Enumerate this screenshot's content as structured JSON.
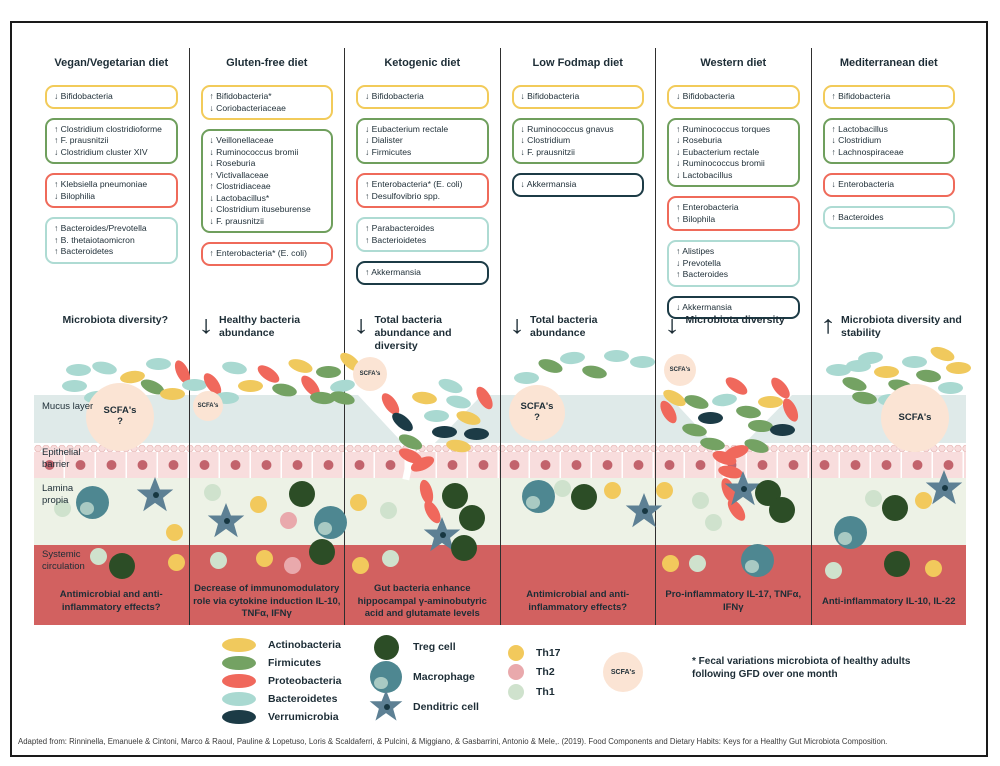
{
  "columns": [
    {
      "title": "Vegan/Vegetarian diet",
      "boxes": [
        {
          "color": "yellow",
          "items": [
            "↓ Bifidobacteria"
          ]
        },
        {
          "color": "green",
          "items": [
            "↑ Clostridium clostridioforme",
            "↑ F. prausnitzii",
            "↓ Clostridium cluster XIV"
          ]
        },
        {
          "color": "red",
          "items": [
            "↑ Klebsiella pneumoniae",
            "↓ Bilophilia"
          ]
        },
        {
          "color": "teal",
          "items": [
            "↑ Bacteroides/Prevotella",
            "↑ B. thetaiotaomicron",
            "↑ Bacteroidetes"
          ]
        }
      ],
      "diversity": {
        "arrow": "",
        "text": "Microbiota diversity?"
      },
      "scfa": {
        "text": "SCFA's",
        "question": true
      },
      "effect": "Antimicrobial and anti-inflammatory effects?"
    },
    {
      "title": "Gluten-free diet",
      "boxes": [
        {
          "color": "yellow",
          "items": [
            "↑ Bifidobacteria*",
            "↓ Coriobacteriaceae"
          ]
        },
        {
          "color": "green",
          "items": [
            "↓ Veillonellaceae",
            "↓ Ruminococcus bromii",
            "↓ Roseburia",
            "↑ Victivallaceae",
            "↑ Clostridiaceae",
            "↓ Lactobacillus*",
            "↓ Clostridium ituseburense",
            "↓ F. prausnitzii"
          ]
        },
        {
          "color": "red",
          "items": [
            "↑ Enterobacteria* (E. coli)"
          ]
        }
      ],
      "diversity": {
        "arrow": "↓",
        "text": "Healthy bacteria abundance"
      },
      "scfa": {
        "text": "SCFA's",
        "question": false
      },
      "effect": "Decrease of immunomodulatory role via cytokine induction IL-10, TNFα, IFNγ"
    },
    {
      "title": "Ketogenic diet",
      "boxes": [
        {
          "color": "yellow",
          "items": [
            "↓ Bifidobacteria"
          ]
        },
        {
          "color": "green",
          "items": [
            "↓ Eubacterium rectale",
            "↓ Dialister",
            "↓ Firmicutes"
          ]
        },
        {
          "color": "red",
          "items": [
            "↑ Enterobacteria* (E. coli)",
            "↑ Desulfovibrio spp."
          ]
        },
        {
          "color": "teal",
          "items": [
            "↑ Parabacteroides",
            "↑ Bacterioidetes"
          ]
        },
        {
          "color": "navy",
          "items": [
            "↑ Akkermansia"
          ]
        }
      ],
      "diversity": {
        "arrow": "↓",
        "text": "Total bacteria abundance and diversity"
      },
      "scfa": {
        "text": "SCFA's",
        "question": false
      },
      "effect": "Gut bacteria enhance hippocampal γ-aminobutyric acid and glutamate levels"
    },
    {
      "title": "Low Fodmap diet",
      "boxes": [
        {
          "color": "yellow",
          "items": [
            "↓ Bifidobacteria"
          ]
        },
        {
          "color": "green",
          "items": [
            "↓ Ruminococcus gnavus",
            "↓ Clostridium",
            "↓ F. prausnitzii"
          ]
        },
        {
          "color": "navy",
          "items": [
            "↓ Akkermansia"
          ]
        }
      ],
      "diversity": {
        "arrow": "↓",
        "text": "Total bacteria abundance"
      },
      "scfa": {
        "text": "SCFA's",
        "question": true
      },
      "effect": "Antimicrobial and anti-inflammatory effects?"
    },
    {
      "title": "Western diet",
      "boxes": [
        {
          "color": "yellow",
          "items": [
            "↓ Bifidobacteria"
          ]
        },
        {
          "color": "green",
          "items": [
            "↑ Ruminococcus torques",
            "↓ Roseburia",
            "↓ Eubacterium rectale",
            "↓ Ruminococcus bromii",
            "↓ Lactobacillus"
          ]
        },
        {
          "color": "red",
          "items": [
            "↑ Enterobacteria",
            "↑ Bilophila"
          ]
        },
        {
          "color": "teal",
          "items": [
            "↑ Alistipes",
            "↓ Prevotella",
            "↑ Bacteroides"
          ]
        },
        {
          "color": "navy",
          "items": [
            "↓ Akkermansia"
          ]
        }
      ],
      "diversity": {
        "arrow": "↓",
        "text": "Microbiota diversity"
      },
      "scfa": {
        "text": "SCFA's",
        "question": false
      },
      "effect": "Pro-inflammatory IL-17, TNFα, IFNγ"
    },
    {
      "title": "Mediterranean diet",
      "boxes": [
        {
          "color": "yellow",
          "items": [
            "↑ Bifidobacteria"
          ]
        },
        {
          "color": "green",
          "items": [
            "↑ Lactobacillus",
            "↓ Clostridium",
            "↑ Lachnospiraceae"
          ]
        },
        {
          "color": "red",
          "items": [
            "↓ Enterobacteria"
          ]
        },
        {
          "color": "teal",
          "items": [
            "↑ Bacteroides"
          ]
        }
      ],
      "diversity": {
        "arrow": "↑",
        "text": "Microbiota diversity and stability"
      },
      "scfa": {
        "text": "SCFA's",
        "question": false
      },
      "effect": "Anti-inflammatory IL-10, IL-22"
    }
  ],
  "layers": {
    "mucus": "Mucus layer",
    "epithelial": "Epithelial barrier",
    "lamina": "Lamina propia",
    "systemic": "Systemic circulation"
  },
  "legend": {
    "bacteria": [
      {
        "key": "a",
        "label": "Actinobacteria"
      },
      {
        "key": "f",
        "label": "Firmicutes"
      },
      {
        "key": "p",
        "label": "Proteobacteria"
      },
      {
        "key": "b",
        "label": "Bacteroidetes"
      },
      {
        "key": "v",
        "label": "Verrumicrobia"
      }
    ],
    "cells": [
      {
        "key": "treg",
        "label": "Treg cell"
      },
      {
        "key": "mac",
        "label": "Macrophage"
      },
      {
        "key": "den",
        "label": "Denditric cell"
      }
    ],
    "th": [
      {
        "key": "th17",
        "label": "Th17"
      },
      {
        "key": "th2",
        "label": "Th2"
      },
      {
        "key": "th1",
        "label": "Th1"
      }
    ],
    "scfa_label": "SCFA's",
    "footnote": "* Fecal variations microbiota of healthy adults following GFD over one month"
  },
  "citation": "Adapted from: Rinninella, Emanuele & Cintoni, Marco & Raoul, Pauline & Lopetuso, Loris & Scaldaferri, & Pulcini, & Miggiano, & Gasbarrini, Antonio & Mele,. (2019). Food Components and Dietary Habits: Keys for a Healthy Gut Microbiota Composition.",
  "colors": {
    "ink": "#1d2d36",
    "yellow": "#f2cb5a",
    "green": "#6f9f5d",
    "red": "#ef6a5a",
    "teal": "#aedbd3",
    "navy": "#1c3b46",
    "actino": "#f0c95d",
    "firmicutes": "#74a263",
    "proteo": "#f0685c",
    "bacteroidetes": "#a9d9d1",
    "verrumicrobia": "#1c3b46",
    "treg": "#2c4d26",
    "mac": "#4e8791",
    "den": "#5d8094",
    "th17": "#f2c95c",
    "th2": "#e9a9ac",
    "th1": "#cfe2cd",
    "scfa": "#fbe4d4",
    "mucus": "#dfeae9",
    "epi": "#f8dddd",
    "nucleus": "#c2636c",
    "lamina": "#edf2e6",
    "systemic": "#d26160"
  }
}
